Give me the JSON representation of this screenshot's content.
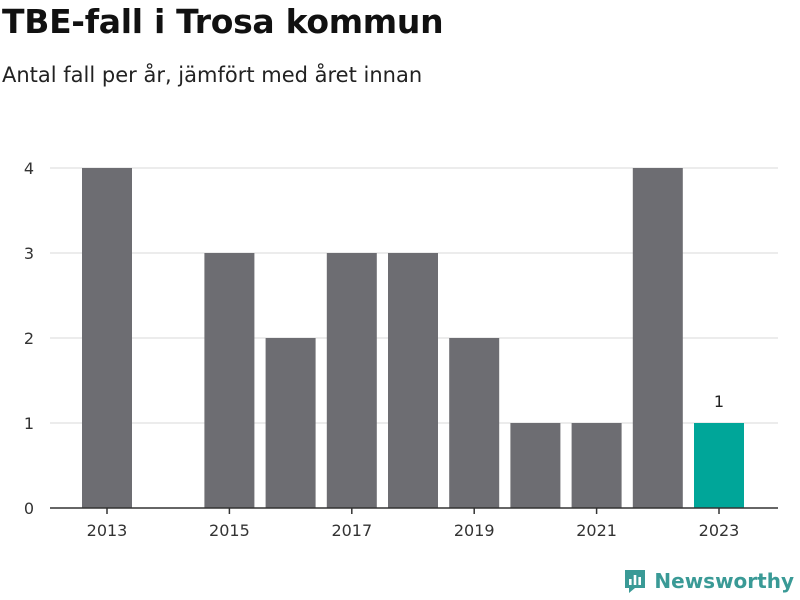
{
  "header": {
    "title": "TBE-fall i Trosa kommun",
    "subtitle": "Antal fall per år, jämfört med året innan"
  },
  "brand": {
    "name": "Newsworthy",
    "color": "#3a9a96"
  },
  "colors": {
    "bar": "#6d6d72",
    "highlight": "#00a699",
    "grid": "#d9d9d9",
    "axis": "#333333"
  },
  "chart_data": {
    "type": "bar",
    "categories": [
      "2013",
      "2014",
      "2015",
      "2016",
      "2017",
      "2018",
      "2019",
      "2020",
      "2021",
      "2022",
      "2023"
    ],
    "values": [
      4,
      0,
      3,
      2,
      3,
      3,
      2,
      1,
      1,
      4,
      1
    ],
    "x_tick_labels": [
      "2013",
      "2015",
      "2017",
      "2019",
      "2021",
      "2023"
    ],
    "y_ticks": [
      0,
      1,
      2,
      3,
      4
    ],
    "ylim": [
      0,
      4
    ],
    "highlight": {
      "category": "2023",
      "label": "1"
    },
    "xlabel": "",
    "ylabel": "",
    "grid": true,
    "legend": "none"
  }
}
